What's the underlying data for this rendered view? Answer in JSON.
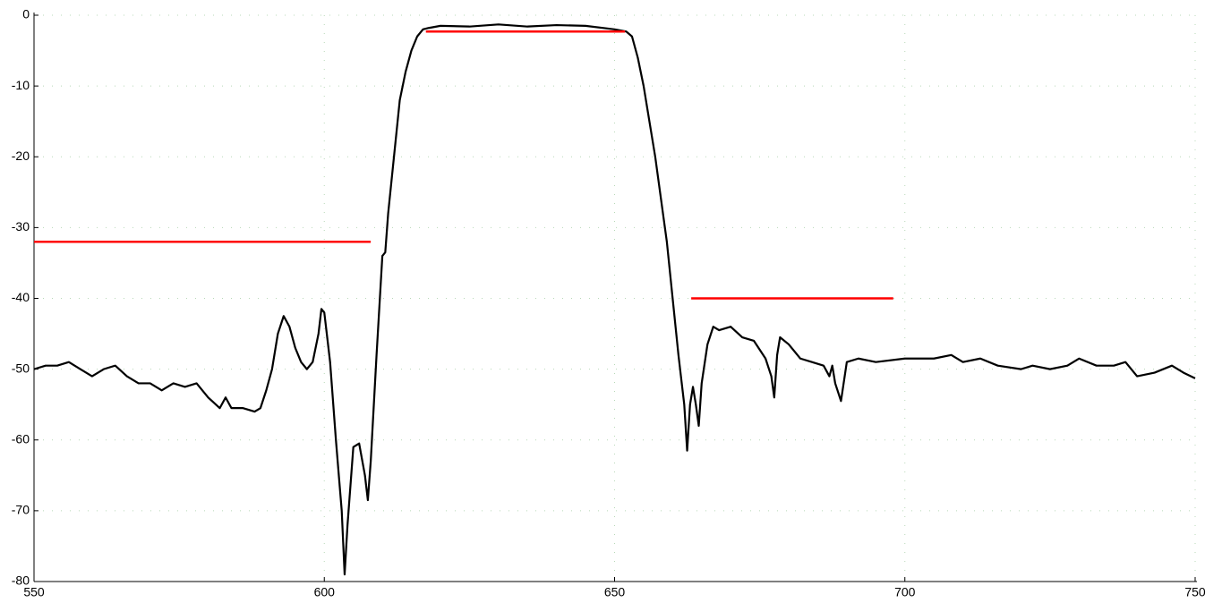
{
  "chart_data": {
    "type": "line",
    "xlim": [
      550,
      750
    ],
    "xticks": [
      550,
      600,
      650,
      700,
      750
    ],
    "ylim": [
      -80,
      0
    ],
    "yticks": [
      -80,
      -70,
      -60,
      -50,
      -40,
      -30,
      -20,
      -10,
      0
    ],
    "grid": true,
    "series": [
      {
        "color": "#000000",
        "x": [
          550,
          552,
          554,
          556,
          558,
          560,
          562,
          564,
          566,
          568,
          570,
          572,
          574,
          576,
          578,
          580,
          582,
          583,
          584,
          586,
          588,
          589,
          590,
          591,
          592,
          593,
          594,
          595,
          596,
          597,
          598,
          599,
          599.5,
          600,
          601,
          602,
          603,
          603.5,
          604,
          605,
          606,
          607,
          607.5,
          608,
          609,
          610,
          610.5,
          611,
          612,
          613,
          614,
          615,
          616,
          617,
          618,
          620,
          625,
          630,
          635,
          640,
          645,
          650,
          652,
          653,
          654,
          655,
          656,
          657,
          658,
          659,
          660,
          661,
          662,
          662.5,
          663,
          663.5,
          664,
          664.5,
          665,
          666,
          667,
          668,
          670,
          672,
          674,
          676,
          677,
          677.5,
          678,
          678.5,
          680,
          682,
          684,
          686,
          687,
          687.5,
          688,
          689,
          690,
          692,
          695,
          700,
          705,
          708,
          710,
          713,
          716,
          720,
          722,
          725,
          728,
          730,
          733,
          736,
          738,
          740,
          743,
          746,
          748,
          750
        ],
        "values": [
          -50,
          -49.5,
          -49.5,
          -49,
          -50,
          -51,
          -50,
          -49.5,
          -51,
          -52,
          -52,
          -53,
          -52,
          -52.5,
          -52,
          -54,
          -55.5,
          -54,
          -55.5,
          -55.5,
          -56,
          -55.5,
          -53,
          -50,
          -45,
          -42.5,
          -44,
          -47,
          -49,
          -50,
          -49,
          -45,
          -41.5,
          -42,
          -49,
          -60,
          -70,
          -79,
          -72,
          -61,
          -60.5,
          -65,
          -68.5,
          -63,
          -48,
          -34,
          -33.5,
          -28,
          -20,
          -12,
          -8,
          -5,
          -3,
          -2,
          -1.8,
          -1.5,
          -1.6,
          -1.3,
          -1.6,
          -1.4,
          -1.5,
          -2,
          -2.3,
          -3,
          -6,
          -10,
          -15,
          -20,
          -26,
          -32,
          -40,
          -48,
          -55,
          -61.5,
          -55,
          -52.5,
          -55,
          -58,
          -52,
          -46.5,
          -44,
          -44.5,
          -44,
          -45.5,
          -46,
          -48.5,
          -51,
          -54,
          -48,
          -45.5,
          -46.5,
          -48.5,
          -49,
          -49.5,
          -51,
          -49.5,
          -52,
          -54.5,
          -49,
          -48.5,
          -49,
          -48.5,
          -48.5,
          -48,
          -49,
          -48.5,
          -49.5,
          -50,
          -49.5,
          -50,
          -49.5,
          -48.5,
          -49.5,
          -49.5,
          -49,
          -51,
          -50.5,
          -49.5,
          -50.5,
          -51.3
        ]
      },
      {
        "color": "#ff0000",
        "x": [
          550,
          608
        ],
        "values": [
          -32,
          -32
        ]
      },
      {
        "color": "#ff0000",
        "x": [
          617.5,
          651.8
        ],
        "values": [
          -2.3,
          -2.3
        ]
      },
      {
        "color": "#ff0000",
        "x": [
          663.2,
          698
        ],
        "values": [
          -40,
          -40
        ]
      }
    ]
  }
}
